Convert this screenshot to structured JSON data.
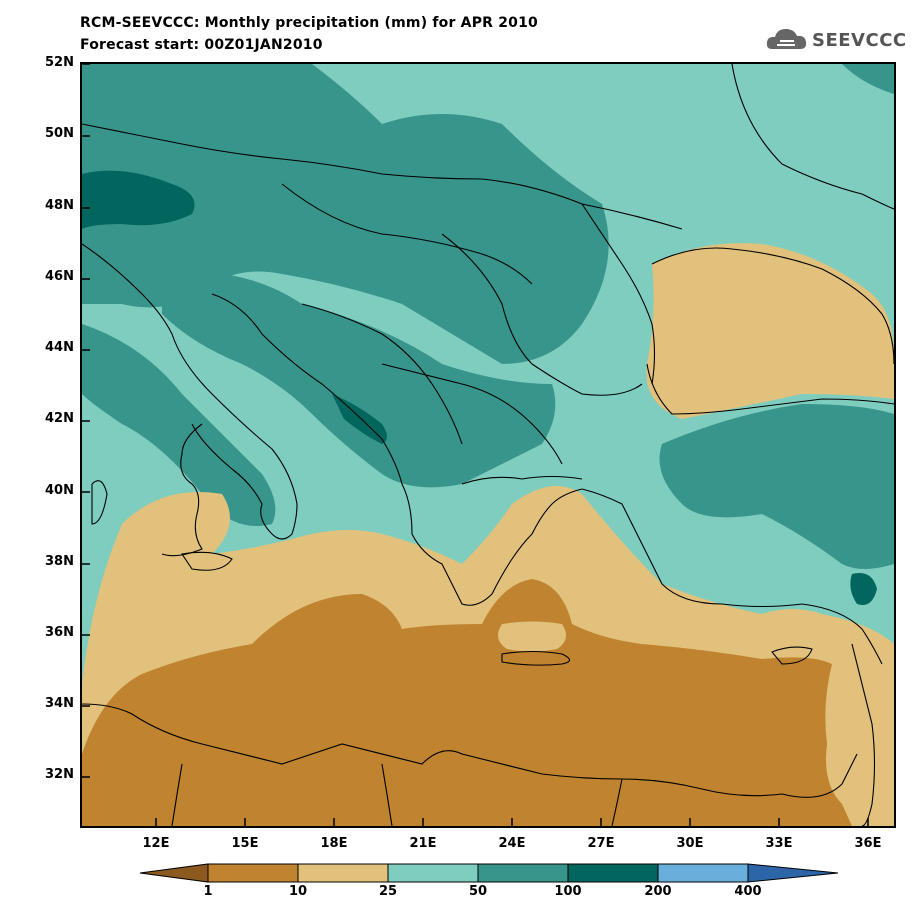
{
  "title_line1": "RCM-SEEVCCC: Monthly precipitation (mm) for APR 2010",
  "title_line2": "Forecast start: 00Z01JAN2010",
  "logo_text": "SEEVCCC",
  "lat_labels": [
    "52N",
    "50N",
    "48N",
    "46N",
    "44N",
    "42N",
    "40N",
    "38N",
    "36N",
    "34N",
    "32N"
  ],
  "lon_labels": [
    "12E",
    "15E",
    "18E",
    "21E",
    "24E",
    "27E",
    "30E",
    "33E",
    "36E"
  ],
  "colorbar": {
    "levels": [
      "1",
      "10",
      "25",
      "50",
      "100",
      "200",
      "400"
    ],
    "colors": [
      "#8c5a1e",
      "#c0832f",
      "#e2c17c",
      "#7ecdbf",
      "#38958c",
      "#00665e",
      "#6aaedb",
      "#2c66a8"
    ]
  },
  "map_colors": {
    "very_dry": "#c0832f",
    "dry": "#e2c17c",
    "moderate": "#7ecdbf",
    "wet": "#38958c",
    "very_wet": "#00665e"
  }
}
